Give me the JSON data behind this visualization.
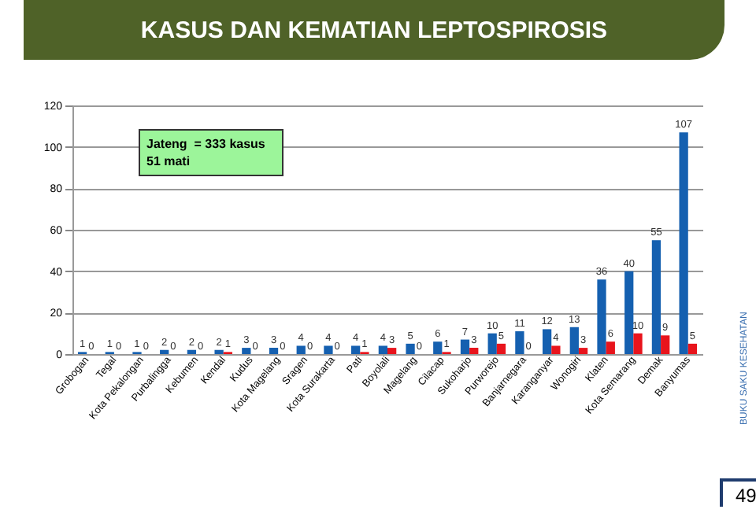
{
  "chart_data": {
    "type": "bar",
    "title": "KASUS DAN KEMATIAN LEPTOSPIROSIS",
    "categories": [
      "Grobogan",
      "Tegal",
      "Kota Pekalongan",
      "Purbalingga",
      "Kebumen",
      "Kendal",
      "Kudus",
      "Kota Magelang",
      "Sragen",
      "Kota Surakarta",
      "Pati",
      "Boyolali",
      "Magelang",
      "Cilacap",
      "Sukoharjo",
      "Purworejo",
      "Banjarnegara",
      "Karanganyar",
      "Wonogiri",
      "Klaten",
      "Kota Semarang",
      "Demak",
      "Banyumas"
    ],
    "series": [
      {
        "color": "#1560b0",
        "values": [
          1,
          1,
          1,
          2,
          2,
          2,
          3,
          3,
          4,
          4,
          4,
          4,
          5,
          6,
          7,
          10,
          11,
          12,
          13,
          36,
          40,
          55,
          107
        ]
      },
      {
        "color": "#e8141c",
        "values": [
          0,
          0,
          0,
          0,
          0,
          1,
          0,
          0,
          0,
          0,
          1,
          3,
          0,
          1,
          3,
          5,
          0,
          4,
          3,
          6,
          10,
          9,
          5
        ]
      }
    ],
    "ylim": [
      0,
      120
    ],
    "yticks": [
      0,
      20,
      40,
      60,
      80,
      100,
      120
    ],
    "grid": "y",
    "data_labels": true,
    "legend": false,
    "annotations": [
      "Jateng  = 333 kasus\n51 mati",
      "BUKU SAKU KESEHATAN",
      "49"
    ]
  }
}
